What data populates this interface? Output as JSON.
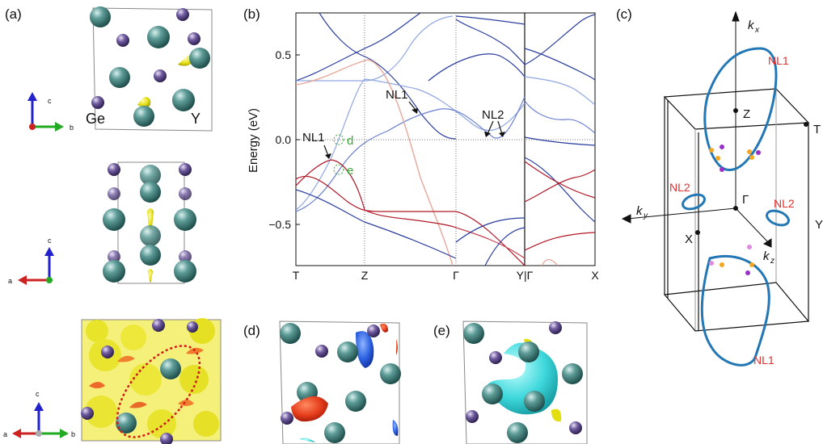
{
  "panel_labels": {
    "a": "(a)",
    "b": "(b)",
    "c": "(c)",
    "d": "(d)",
    "e": "(e)"
  },
  "panel_a": {
    "top_labels": {
      "ge": "Ge",
      "y": "Y"
    },
    "axes_top": {
      "up": "c",
      "right": "b"
    },
    "axes_mid": {
      "up": "c",
      "left": "a"
    },
    "axes_bot": {
      "up": "c",
      "left": "a",
      "right": "b"
    }
  },
  "panel_b": {
    "ylabel": "Energy (eV)",
    "y_ticks": [
      "0.5",
      "0.0",
      "−0.5"
    ],
    "k_labels": [
      "T",
      "Z",
      "Γ",
      "Y|Γ",
      "X"
    ],
    "annotations": {
      "nl1_a": "NL1",
      "nl1_b": "NL1",
      "nl2": "NL2",
      "d": "d",
      "e": "e"
    },
    "colors": {
      "blue": "#2a3d9e",
      "light_blue": "#8fa6e0",
      "red": "#b01928",
      "light_red": "#e8a79a",
      "green": "#3aa83a"
    }
  },
  "panel_c": {
    "labels": {
      "kx": "k",
      "kx_sub": "x",
      "ky": "k",
      "ky_sub": "y",
      "kz": "k",
      "kz_sub": "z",
      "z": "Z",
      "t": "T",
      "gamma": "Γ",
      "y": "Y",
      "x": "X",
      "nl1_top": "NL1",
      "nl1_bot": "NL1",
      "nl2_left": "NL2",
      "nl2_right": "NL2"
    },
    "colors": {
      "ring": "#2277b4",
      "nl_text": "#e03030",
      "orange": "#f5a623",
      "purple": "#9b30c8"
    }
  },
  "chart_data": {
    "type": "line",
    "title": "",
    "xlabel": "",
    "ylabel": "Energy (eV)",
    "ylim": [
      -0.75,
      0.75
    ],
    "x_ticks": [
      "T",
      "Z",
      "Γ",
      "Y|Γ",
      "X"
    ],
    "y_ticks": [
      0.5,
      0.0,
      -0.5
    ],
    "grid": "dotted vertical at high-symmetry points, dotted horizontal at 0"
  }
}
